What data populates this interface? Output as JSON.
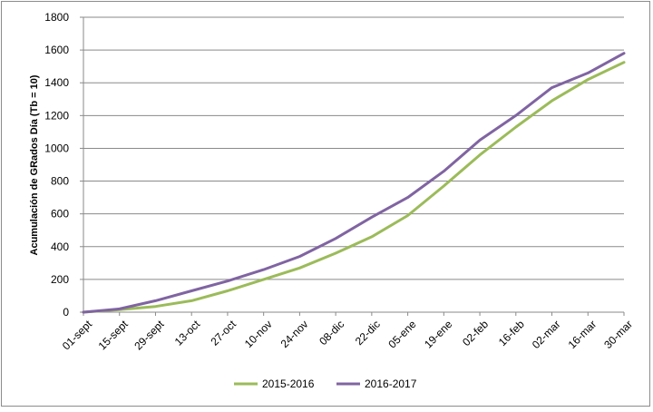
{
  "chart_data": {
    "type": "line",
    "ylabel": "Acumulación de GRados Día (Tb = 10)",
    "xlabel": "",
    "ylim": [
      0,
      1800
    ],
    "yticks": [
      0,
      200,
      400,
      600,
      800,
      1000,
      1200,
      1400,
      1600,
      1800
    ],
    "categories": [
      "01-sept",
      "15-sept",
      "29-sept",
      "13-oct",
      "27-oct",
      "10-nov",
      "24-nov",
      "08-dic",
      "22-dic",
      "05-ene",
      "19-ene",
      "02-feb",
      "16-feb",
      "02-mar",
      "16-mar",
      "30-mar"
    ],
    "grid": true,
    "legend_position": "bottom",
    "series": [
      {
        "name": "2015-2016",
        "color": "#9bbb59",
        "values": [
          0,
          15,
          35,
          70,
          130,
          200,
          270,
          360,
          460,
          590,
          770,
          960,
          1130,
          1290,
          1420,
          1525
        ]
      },
      {
        "name": "2016-2017",
        "color": "#8064a2",
        "values": [
          0,
          20,
          70,
          130,
          190,
          260,
          340,
          450,
          580,
          700,
          860,
          1050,
          1200,
          1370,
          1460,
          1580
        ]
      }
    ]
  }
}
